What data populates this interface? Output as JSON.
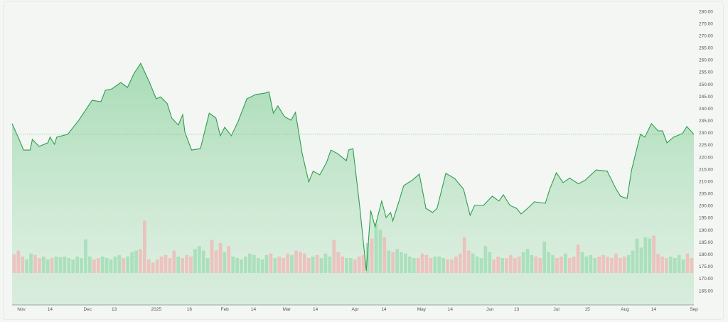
{
  "chart_data": {
    "type": "area",
    "title": "",
    "xlabel": "",
    "ylabel": "",
    "ylim": [
      163,
      282
    ],
    "y_ticks": [
      "280.00",
      "275.00",
      "270.00",
      "265.00",
      "260.00",
      "255.00",
      "250.00",
      "245.00",
      "240.00",
      "235.00",
      "230.00",
      "225.00",
      "220.00",
      "215.00",
      "210.00",
      "205.00",
      "200.00",
      "195.00",
      "190.00",
      "185.00",
      "180.00",
      "175.00",
      "170.00",
      "165.00"
    ],
    "x_ticks": [
      {
        "label": "Nov",
        "date": "2024-11-01"
      },
      {
        "label": "14",
        "date": "2024-11-14"
      },
      {
        "label": "Dec",
        "date": "2024-12-01"
      },
      {
        "label": "13",
        "date": "2024-12-13"
      },
      {
        "label": "2025",
        "date": "2025-01-01"
      },
      {
        "label": "16",
        "date": "2025-01-16"
      },
      {
        "label": "Feb",
        "date": "2025-02-01"
      },
      {
        "label": "14",
        "date": "2025-02-14"
      },
      {
        "label": "Mar",
        "date": "2025-03-01"
      },
      {
        "label": "14",
        "date": "2025-03-14"
      },
      {
        "label": "Apr",
        "date": "2025-04-01"
      },
      {
        "label": "14",
        "date": "2025-04-14"
      },
      {
        "label": "May",
        "date": "2025-05-01"
      },
      {
        "label": "14",
        "date": "2025-05-14"
      },
      {
        "label": "Jun",
        "date": "2025-06-01"
      },
      {
        "label": "13",
        "date": "2025-06-13"
      },
      {
        "label": "Jul",
        "date": "2025-07-01"
      },
      {
        "label": "15",
        "date": "2025-07-15"
      },
      {
        "label": "Aug",
        "date": "2025-08-01"
      },
      {
        "label": "14",
        "date": "2025-08-14"
      },
      {
        "label": "Sep",
        "date": "2025-09-01"
      }
    ],
    "last_price_line": 229.4,
    "colors": {
      "line": "#2e9e4f",
      "fill": "#8fd3a2",
      "up_volume": "#9fdcb3",
      "down_volume": "#f0b8b5",
      "price_line": "#6cc48a"
    },
    "price": {
      "dates": [
        "2024-10-28",
        "2024-10-31",
        "2024-11-02",
        "2024-11-05",
        "2024-11-06",
        "2024-11-09",
        "2024-11-13",
        "2024-11-14",
        "2024-11-16",
        "2024-11-17",
        "2024-11-22",
        "2024-11-27",
        "2024-12-03",
        "2024-12-07",
        "2024-12-09",
        "2024-12-12",
        "2024-12-16",
        "2024-12-19",
        "2024-12-22",
        "2024-12-25",
        "2024-12-29",
        "2025-01-01",
        "2025-01-03",
        "2025-01-06",
        "2025-01-08",
        "2025-01-11",
        "2025-01-13",
        "2025-01-14",
        "2025-01-17",
        "2025-01-21",
        "2025-01-25",
        "2025-01-28",
        "2025-01-30",
        "2025-02-01",
        "2025-02-04",
        "2025-02-07",
        "2025-02-11",
        "2025-02-15",
        "2025-02-19",
        "2025-02-21",
        "2025-02-23",
        "2025-02-25",
        "2025-02-28",
        "2025-03-03",
        "2025-03-05",
        "2025-03-08",
        "2025-03-11",
        "2025-03-13",
        "2025-03-16",
        "2025-03-19",
        "2025-03-21",
        "2025-03-24",
        "2025-03-28",
        "2025-03-29",
        "2025-03-31",
        "2025-04-03",
        "2025-04-06",
        "2025-04-08",
        "2025-04-10",
        "2025-04-13",
        "2025-04-15",
        "2025-04-17",
        "2025-04-18",
        "2025-04-21",
        "2025-04-23",
        "2025-04-27",
        "2025-04-30",
        "2025-05-03",
        "2025-05-06",
        "2025-05-08",
        "2025-05-12",
        "2025-05-16",
        "2025-05-20",
        "2025-05-23",
        "2025-05-25",
        "2025-05-29",
        "2025-06-02",
        "2025-06-05",
        "2025-06-07",
        "2025-06-10",
        "2025-06-13",
        "2025-06-15",
        "2025-06-18",
        "2025-06-21",
        "2025-06-26",
        "2025-06-28",
        "2025-07-01",
        "2025-07-04",
        "2025-07-07",
        "2025-07-11",
        "2025-07-14",
        "2025-07-19",
        "2025-07-24",
        "2025-07-28",
        "2025-07-30",
        "2025-08-02",
        "2025-08-04",
        "2025-08-08",
        "2025-08-10",
        "2025-08-13",
        "2025-08-16",
        "2025-08-18",
        "2025-08-20",
        "2025-08-23",
        "2025-08-27",
        "2025-08-29",
        "2025-08-31"
      ],
      "values": [
        233.8,
        227.3,
        222.9,
        222.9,
        227.3,
        224.4,
        225.9,
        228.2,
        225.3,
        228.2,
        229.4,
        235.2,
        243.4,
        242.8,
        247.5,
        248.1,
        250.7,
        248.7,
        254.5,
        258.6,
        250.7,
        244.0,
        244.8,
        242.0,
        236.1,
        233.2,
        237.5,
        230.2,
        222.9,
        223.5,
        238.1,
        236.1,
        228.8,
        232.3,
        228.8,
        234.6,
        244.0,
        245.8,
        246.3,
        246.9,
        238.1,
        241.1,
        236.7,
        235.2,
        238.4,
        221.5,
        209.8,
        214.2,
        212.7,
        217.7,
        222.9,
        221.5,
        218.5,
        222.9,
        223.5,
        200.1,
        173.2,
        198.0,
        191.3,
        201.9,
        195.1,
        197.2,
        193.7,
        202.4,
        208.3,
        210.6,
        213.0,
        198.9,
        197.2,
        198.9,
        213.3,
        211.2,
        206.8,
        196.0,
        200.1,
        200.1,
        203.9,
        201.9,
        204.5,
        200.1,
        198.9,
        196.6,
        198.9,
        201.6,
        201.0,
        206.8,
        213.6,
        209.5,
        211.3,
        209.0,
        210.5,
        214.7,
        214.2,
        206.8,
        203.9,
        203.0,
        214.7,
        229.4,
        228.2,
        233.8,
        230.8,
        230.8,
        225.9,
        228.2,
        229.7,
        232.6,
        229.4
      ]
    },
    "volume_relative": [
      25,
      30,
      22,
      18,
      26,
      24,
      20,
      22,
      18,
      20,
      22,
      21,
      22,
      20,
      18,
      22,
      20,
      45,
      22,
      18,
      20,
      22,
      20,
      18,
      22,
      24,
      20,
      22,
      28,
      30,
      32,
      70,
      18,
      14,
      18,
      22,
      24,
      20,
      30,
      22,
      20,
      24,
      22,
      32,
      36,
      30,
      20,
      44,
      30,
      40,
      28,
      36,
      22,
      20,
      18,
      22,
      26,
      24,
      20,
      18,
      24,
      26,
      20,
      22,
      20,
      26,
      24,
      30,
      28,
      26,
      20,
      22,
      24,
      20,
      26,
      22,
      44,
      28,
      22,
      20,
      20,
      18,
      22,
      24,
      40,
      46,
      66,
      58,
      48,
      30,
      28,
      32,
      28,
      26,
      22,
      20,
      20,
      26,
      24,
      20,
      22,
      22,
      20,
      18,
      18,
      22,
      26,
      48,
      30,
      26,
      22,
      20,
      36,
      28,
      18,
      22,
      20,
      20,
      24,
      20,
      22,
      28,
      32,
      24,
      22,
      20,
      42,
      28,
      24,
      20,
      22,
      26,
      20,
      22,
      38,
      28,
      22,
      24,
      20,
      22,
      24,
      22,
      20,
      26,
      20,
      22,
      24,
      30,
      46,
      34,
      48,
      46,
      50,
      26,
      22,
      20,
      22,
      20,
      24,
      18,
      26,
      20
    ]
  }
}
